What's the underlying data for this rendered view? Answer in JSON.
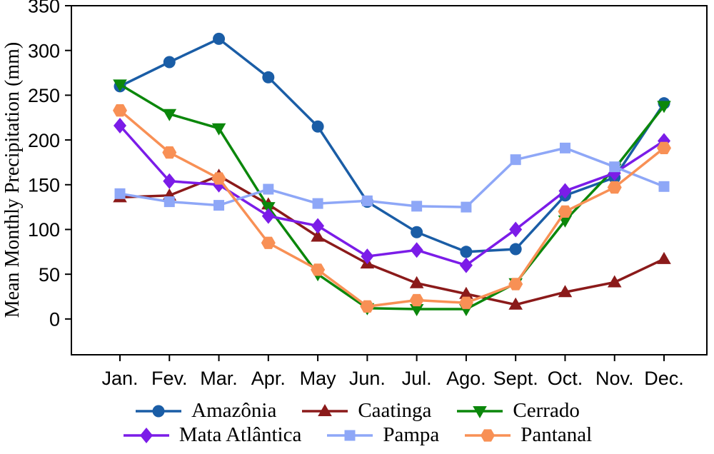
{
  "chart_data": {
    "type": "line",
    "title": "",
    "xlabel": "",
    "ylabel": "Mean Monthly Precipitation (mm)",
    "categories": [
      "Jan.",
      "Fev.",
      "Mar.",
      "Apr.",
      "May",
      "Jun.",
      "Jul.",
      "Ago.",
      "Sept.",
      "Oct.",
      "Nov.",
      "Dec."
    ],
    "yticks": [
      0,
      50,
      100,
      150,
      200,
      250,
      300,
      350
    ],
    "ylim": [
      -40,
      350
    ],
    "grid": false,
    "legend_position": "bottom",
    "frame": "full-box",
    "series": [
      {
        "name": "Amazônia",
        "marker": "circle",
        "color": "#1A5DA6",
        "values": [
          260,
          287,
          313,
          270,
          215,
          131,
          97,
          75,
          78,
          138,
          158,
          241
        ]
      },
      {
        "name": "Caatinga",
        "marker": "triangle-up",
        "color": "#8B1A1A",
        "values": [
          136,
          138,
          160,
          128,
          92,
          62,
          40,
          28,
          16,
          30,
          41,
          67
        ]
      },
      {
        "name": "Cerrado",
        "marker": "triangle-down",
        "color": "#0B870B",
        "values": [
          262,
          229,
          213,
          125,
          50,
          12,
          11,
          11,
          40,
          110,
          168,
          238
        ]
      },
      {
        "name": "Mata Atlântica",
        "marker": "diamond",
        "color": "#7B1CE8",
        "values": [
          216,
          154,
          150,
          115,
          104,
          70,
          77,
          60,
          100,
          143,
          163,
          199
        ]
      },
      {
        "name": "Pampa",
        "marker": "square",
        "color": "#8EA7F7",
        "values": [
          140,
          131,
          127,
          145,
          129,
          132,
          126,
          125,
          178,
          191,
          170,
          148
        ]
      },
      {
        "name": "Pantanal",
        "marker": "hexagon",
        "color": "#F89055",
        "values": [
          233,
          186,
          157,
          85,
          55,
          14,
          21,
          18,
          39,
          120,
          147,
          191
        ]
      }
    ],
    "legend_rows": [
      [
        0,
        1,
        2
      ],
      [
        3,
        4,
        5
      ]
    ]
  }
}
